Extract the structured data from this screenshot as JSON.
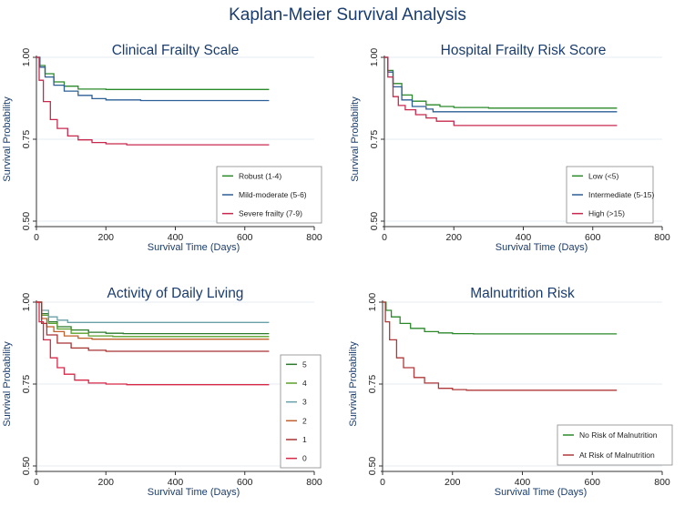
{
  "figure": {
    "title": "Kaplan-Meier Survival Analysis"
  },
  "chart_data": [
    {
      "type": "line",
      "title": "Clinical Frailty Scale",
      "xlabel": "Survival Time (Days)",
      "ylabel": "Survival Probability",
      "xlim": [
        0,
        800
      ],
      "ylim": [
        0.5,
        1.0
      ],
      "xticks": [
        0,
        200,
        400,
        600,
        800
      ],
      "yticks": [
        0.5,
        0.75,
        1.0
      ],
      "ytick_labels": [
        "0.50",
        "0.75",
        "1.00"
      ],
      "series": [
        {
          "name": "Robust (1-4)",
          "color": "#2a8a2a",
          "x": [
            0,
            10,
            25,
            50,
            80,
            120,
            200,
            300,
            670
          ],
          "y": [
            1.0,
            0.975,
            0.95,
            0.925,
            0.912,
            0.903,
            0.902,
            0.902,
            0.902
          ]
        },
        {
          "name": "Mild-moderate (5-6)",
          "color": "#2c5f96",
          "x": [
            0,
            10,
            25,
            50,
            80,
            120,
            160,
            200,
            300,
            670
          ],
          "y": [
            1.0,
            0.97,
            0.94,
            0.915,
            0.897,
            0.884,
            0.874,
            0.87,
            0.868,
            0.868
          ]
        },
        {
          "name": "Severe frailty (7-9)",
          "color": "#c8284e",
          "x": [
            0,
            8,
            20,
            40,
            60,
            90,
            120,
            160,
            200,
            260,
            670
          ],
          "y": [
            1.0,
            0.93,
            0.865,
            0.81,
            0.783,
            0.76,
            0.748,
            0.74,
            0.736,
            0.733,
            0.733
          ]
        }
      ]
    },
    {
      "type": "line",
      "title": "Hospital Frailty Risk Score",
      "xlabel": "Survival Time (Days)",
      "ylabel": "Survival Probability",
      "xlim": [
        0,
        800
      ],
      "ylim": [
        0.5,
        1.0
      ],
      "xticks": [
        0,
        200,
        400,
        600,
        800
      ],
      "yticks": [
        0.5,
        0.75,
        1.0
      ],
      "ytick_labels": [
        "0.50",
        "0.75",
        "1.00"
      ],
      "series": [
        {
          "name": "Low (<5)",
          "color": "#2a8a2a",
          "x": [
            0,
            10,
            25,
            50,
            80,
            120,
            160,
            200,
            300,
            670
          ],
          "y": [
            1.0,
            0.96,
            0.92,
            0.885,
            0.866,
            0.855,
            0.85,
            0.847,
            0.845,
            0.845
          ]
        },
        {
          "name": "Intermediate (5-15)",
          "color": "#2c5f96",
          "x": [
            0,
            10,
            25,
            50,
            80,
            120,
            140,
            670
          ],
          "y": [
            1.0,
            0.955,
            0.91,
            0.87,
            0.85,
            0.842,
            0.834,
            0.834
          ]
        },
        {
          "name": "High (>15)",
          "color": "#c8284e",
          "x": [
            0,
            10,
            25,
            40,
            60,
            90,
            120,
            150,
            200,
            670
          ],
          "y": [
            1.0,
            0.94,
            0.88,
            0.853,
            0.84,
            0.825,
            0.815,
            0.805,
            0.792,
            0.792
          ]
        }
      ]
    },
    {
      "type": "line",
      "title": "Activity of Daily Living",
      "xlabel": "Survival Time (Days)",
      "ylabel": "Survival Probability",
      "xlim": [
        0,
        800
      ],
      "ylim": [
        0.5,
        1.0
      ],
      "xticks": [
        0,
        200,
        400,
        600,
        800
      ],
      "yticks": [
        0.5,
        0.75,
        1.0
      ],
      "ytick_labels": [
        "0.50",
        "0.75",
        "1.00"
      ],
      "series": [
        {
          "name": "5",
          "color": "#2a7a2a",
          "x": [
            0,
            15,
            35,
            60,
            100,
            150,
            200,
            250,
            670
          ],
          "y": [
            1.0,
            0.965,
            0.94,
            0.925,
            0.915,
            0.908,
            0.905,
            0.904,
            0.904
          ]
        },
        {
          "name": "4",
          "color": "#5aa02a",
          "x": [
            0,
            15,
            35,
            60,
            100,
            150,
            220,
            670
          ],
          "y": [
            1.0,
            0.96,
            0.935,
            0.918,
            0.905,
            0.897,
            0.895,
            0.895
          ]
        },
        {
          "name": "3",
          "color": "#6aa0a8",
          "x": [
            0,
            15,
            35,
            60,
            90,
            670
          ],
          "y": [
            1.0,
            0.975,
            0.955,
            0.945,
            0.938,
            0.938
          ]
        },
        {
          "name": "2",
          "color": "#c0602a",
          "x": [
            0,
            15,
            30,
            50,
            80,
            120,
            160,
            670
          ],
          "y": [
            1.0,
            0.95,
            0.925,
            0.91,
            0.897,
            0.89,
            0.887,
            0.887
          ]
        },
        {
          "name": "1",
          "color": "#a83232",
          "x": [
            0,
            15,
            30,
            60,
            100,
            150,
            200,
            670
          ],
          "y": [
            1.0,
            0.935,
            0.9,
            0.875,
            0.86,
            0.853,
            0.85,
            0.85
          ]
        },
        {
          "name": "0",
          "color": "#d82848",
          "x": [
            0,
            8,
            20,
            40,
            60,
            80,
            110,
            150,
            200,
            260,
            670
          ],
          "y": [
            1.0,
            0.94,
            0.885,
            0.83,
            0.8,
            0.78,
            0.762,
            0.753,
            0.75,
            0.748,
            0.748
          ]
        }
      ]
    },
    {
      "type": "line",
      "title": "Malnutrition Risk",
      "xlabel": "Survival Time (Days)",
      "ylabel": "Survival Probability",
      "xlim": [
        0,
        800
      ],
      "ylim": [
        0.5,
        1.0
      ],
      "xticks": [
        0,
        200,
        400,
        600,
        800
      ],
      "yticks": [
        0.5,
        0.75,
        1.0
      ],
      "ytick_labels": [
        "0.50",
        "0.75",
        "1.00"
      ],
      "series": [
        {
          "name": "No Risk of Malnutrition",
          "color": "#2a8a2a",
          "x": [
            0,
            10,
            25,
            50,
            80,
            120,
            160,
            200,
            260,
            670
          ],
          "y": [
            1.0,
            0.975,
            0.955,
            0.935,
            0.92,
            0.91,
            0.906,
            0.904,
            0.903,
            0.903
          ]
        },
        {
          "name": "At Risk of Malnutrition",
          "color": "#b03838",
          "x": [
            0,
            8,
            20,
            40,
            60,
            90,
            120,
            160,
            200,
            240,
            670
          ],
          "y": [
            1.0,
            0.94,
            0.885,
            0.83,
            0.8,
            0.77,
            0.753,
            0.737,
            0.733,
            0.731,
            0.731
          ]
        }
      ]
    }
  ]
}
